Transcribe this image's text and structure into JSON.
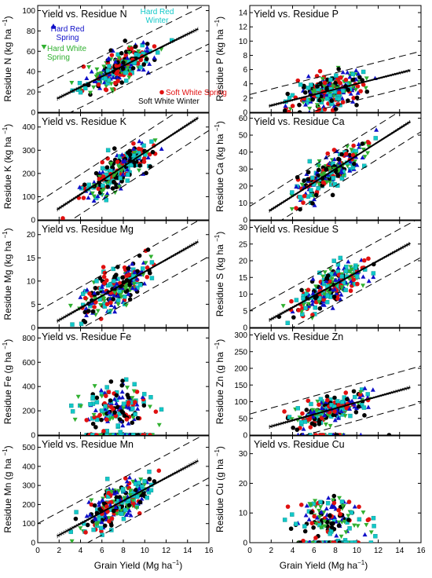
{
  "figure": {
    "x_axis_label": "Grain Yield (Mg ha",
    "x_axis_label_sup": "−1",
    "x_axis_label_end": ")"
  },
  "legend": [
    {
      "name": "Hard Red Spring",
      "line1": "Hard Red",
      "line2": "Spring",
      "color": "#1010c8",
      "marker": "triangle-up"
    },
    {
      "name": "Hard Red Winter",
      "line1": "Hard Red",
      "line2": "Winter",
      "color": "#12c8c8",
      "marker": "square"
    },
    {
      "name": "Hard White Spring",
      "line1": "Hard White",
      "line2": "Spring",
      "color": "#30b030",
      "marker": "triangle-down"
    },
    {
      "name": "Soft White Spring",
      "line1": "Soft White Spring",
      "line2": "",
      "color": "#e01010",
      "marker": "circle"
    },
    {
      "name": "Soft White Winter",
      "line1": "Soft White Winter",
      "line2": "",
      "color": "#000000",
      "marker": "circle"
    }
  ],
  "chart_data": [
    {
      "type": "scatter",
      "title": "Yield vs. Residue N",
      "ylabel": "Residue N",
      "yunit": "kg ha",
      "ylim": [
        0,
        105
      ],
      "yticks": [
        0,
        20,
        40,
        60,
        80,
        100
      ],
      "xlim": [
        0,
        16
      ],
      "xticks": [
        0,
        2,
        4,
        6,
        8,
        10,
        12,
        14,
        16
      ],
      "ymean": 40,
      "yspread": 15,
      "regression": {
        "intercept": 4,
        "slope": 5.2,
        "band": 20,
        "x_from": 1.8,
        "x_to": 15
      }
    },
    {
      "type": "scatter",
      "title": "Yield vs. Residue P",
      "ylabel": "Residue P",
      "yunit": "kg ha",
      "ylim": [
        0,
        15
      ],
      "yticks": [
        0,
        2,
        4,
        6,
        8,
        10,
        12,
        14
      ],
      "xlim": [
        0,
        16
      ],
      "xticks": [
        0,
        2,
        4,
        6,
        8,
        10,
        12,
        14,
        16
      ],
      "ymean": 3,
      "yspread": 2.4,
      "regression": {
        "intercept": 0.2,
        "slope": 0.38,
        "band": 2.3,
        "x_from": 1.8,
        "x_to": 15
      }
    },
    {
      "type": "scatter",
      "title": "Yield vs. Residue K",
      "ylabel": "Residue K",
      "yunit": "kg ha",
      "ylim": [
        0,
        460
      ],
      "yticks": [
        0,
        100,
        200,
        300,
        400
      ],
      "xlim": [
        0,
        16
      ],
      "xticks": [
        0,
        2,
        4,
        6,
        8,
        10,
        12,
        14,
        16
      ],
      "ymean": 180,
      "yspread": 70,
      "regression": {
        "intercept": -10,
        "slope": 30,
        "band": 85,
        "x_from": 1.8,
        "x_to": 15
      }
    },
    {
      "type": "scatter",
      "title": "Yield vs. Residue Ca",
      "ylabel": "Residue Ca",
      "yunit": "kg ha",
      "ylim": [
        0,
        63
      ],
      "yticks": [
        0,
        10,
        20,
        30,
        40,
        50,
        60
      ],
      "xlim": [
        0,
        16
      ],
      "xticks": [
        0,
        2,
        4,
        6,
        8,
        10,
        12,
        14,
        16
      ],
      "ymean": 25,
      "yspread": 10,
      "regression": {
        "intercept": -2,
        "slope": 4.0,
        "band": 10,
        "x_from": 1.8,
        "x_to": 15
      }
    },
    {
      "type": "scatter",
      "title": "Yield vs. Residue Mg",
      "ylabel": "Residue Mg",
      "yunit": "kg ha",
      "ylim": [
        0,
        23
      ],
      "yticks": [
        0,
        5,
        10,
        15,
        20
      ],
      "xlim": [
        0,
        16
      ],
      "xticks": [
        0,
        2,
        4,
        6,
        8,
        10,
        12,
        14,
        16
      ],
      "ymean": 8,
      "yspread": 4,
      "regression": {
        "intercept": -1,
        "slope": 1.3,
        "band": 4.5,
        "x_from": 1.8,
        "x_to": 15
      }
    },
    {
      "type": "scatter",
      "title": "Yield vs. Residue S",
      "ylabel": "Residue S",
      "yunit": "kg ha",
      "ylim": [
        0,
        32
      ],
      "yticks": [
        0,
        5,
        10,
        15,
        20,
        25,
        30
      ],
      "xlim": [
        0,
        16
      ],
      "xticks": [
        0,
        2,
        4,
        6,
        8,
        10,
        12,
        14,
        16
      ],
      "ymean": 11,
      "yspread": 5,
      "regression": {
        "intercept": -1,
        "slope": 1.75,
        "band": 6,
        "x_from": 1.8,
        "x_to": 15
      }
    },
    {
      "type": "scatter",
      "title": "Yield vs. Residue Fe",
      "ylabel": "Residue Fe",
      "yunit": "g ha",
      "ylim": [
        0,
        880
      ],
      "yticks": [
        0,
        200,
        400,
        600,
        800
      ],
      "xlim": [
        0,
        16
      ],
      "xticks": [
        0,
        2,
        4,
        6,
        8,
        10,
        12,
        14,
        16
      ],
      "ymean": 230,
      "yspread": 160,
      "zero_fraction": 0.35,
      "regression": null
    },
    {
      "type": "scatter",
      "title": "Yield vs. Residue Zn",
      "ylabel": "Residue Zn",
      "yunit": "g ha",
      "ylim": [
        0,
        320
      ],
      "yticks": [
        0,
        50,
        100,
        150,
        200,
        250,
        300
      ],
      "xlim": [
        0,
        16
      ],
      "xticks": [
        0,
        2,
        4,
        6,
        8,
        10,
        12,
        14,
        16
      ],
      "ymean": 50,
      "yspread": 35,
      "zero_fraction": 0.1,
      "regression": {
        "intercept": 8,
        "slope": 9.0,
        "band": 55,
        "x_from": 1.8,
        "x_to": 15
      }
    },
    {
      "type": "scatter",
      "title": "Yield vs. Residue Mn",
      "ylabel": "Residue Mn",
      "yunit": "g ha",
      "ylim": [
        0,
        560
      ],
      "yticks": [
        0,
        100,
        200,
        300,
        400,
        500
      ],
      "xlim": [
        0,
        16
      ],
      "xticks": [
        0,
        2,
        4,
        6,
        8,
        10,
        12,
        14,
        16
      ],
      "ymean": 220,
      "yspread": 95,
      "regression": {
        "intercept": -20,
        "slope": 30,
        "band": 120,
        "x_from": 1.8,
        "x_to": 15
      }
    },
    {
      "type": "scatter",
      "title": "Yield vs. Residue Cu",
      "ylabel": "Residue Cu",
      "yunit": "g ha",
      "ylim": [
        0,
        36
      ],
      "yticks": [
        0,
        10,
        20,
        30
      ],
      "xlim": [
        0,
        16
      ],
      "xticks": [
        0,
        2,
        4,
        6,
        8,
        10,
        12,
        14,
        16
      ],
      "ymean": 9,
      "yspread": 6,
      "zero_fraction": 0.45,
      "regression": null
    }
  ]
}
